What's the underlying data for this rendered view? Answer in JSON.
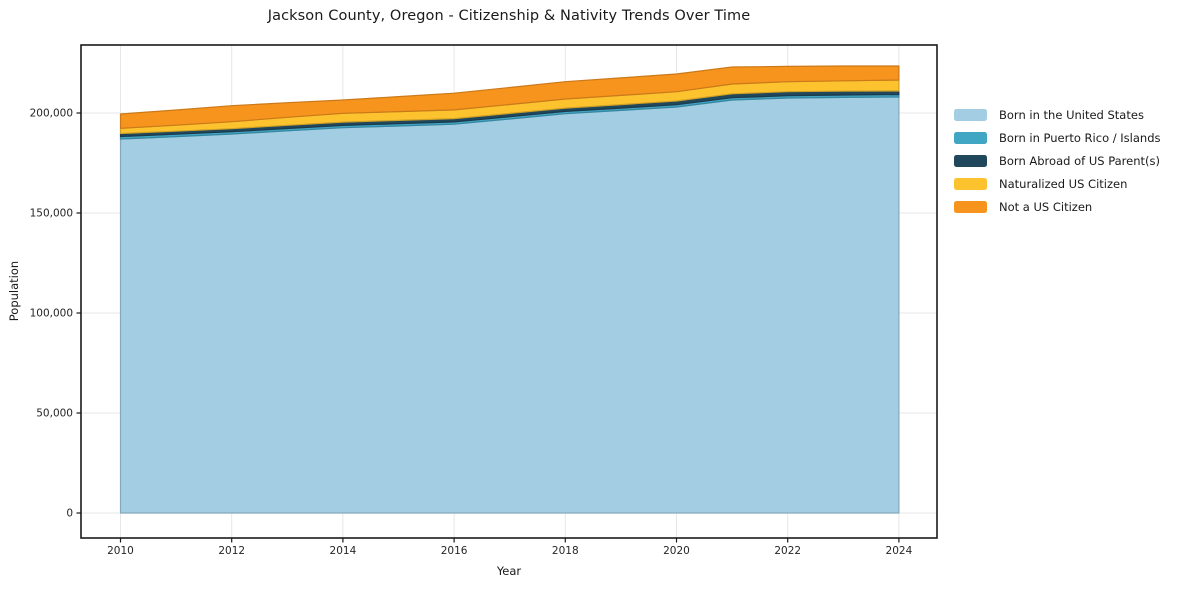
{
  "chart_data": {
    "type": "area",
    "stacked": true,
    "title": "Jackson County, Oregon - Citizenship & Nativity Trends Over Time",
    "xlabel": "Year",
    "ylabel": "Population",
    "x": [
      2010,
      2011,
      2012,
      2013,
      2014,
      2015,
      2016,
      2017,
      2018,
      2019,
      2020,
      2021,
      2022,
      2023,
      2024
    ],
    "x_ticks": [
      {
        "value": 2010,
        "label": "2010"
      },
      {
        "value": 2012,
        "label": "2012"
      },
      {
        "value": 2014,
        "label": "2014"
      },
      {
        "value": 2016,
        "label": "2016"
      },
      {
        "value": 2018,
        "label": "2018"
      },
      {
        "value": 2020,
        "label": "2020"
      },
      {
        "value": 2022,
        "label": "2022"
      },
      {
        "value": 2024,
        "label": "2024"
      }
    ],
    "y_ticks": [
      {
        "value": 0,
        "label": "0"
      },
      {
        "value": 50000,
        "label": "50,000"
      },
      {
        "value": 100000,
        "label": "100,000"
      },
      {
        "value": 150000,
        "label": "150,000"
      },
      {
        "value": 200000,
        "label": "200,000"
      }
    ],
    "xlim": [
      2009.3,
      2024.7
    ],
    "ylim": [
      -12500,
      234000
    ],
    "grid": true,
    "legend_position": "right",
    "series": [
      {
        "name": "Born in the United States",
        "color": "#a2cde3",
        "values": [
          187000,
          188200,
          189500,
          191100,
          192650,
          193500,
          194400,
          197000,
          199650,
          201300,
          203000,
          206500,
          207500,
          207800,
          208000
        ]
      },
      {
        "name": "Born in Puerto Rico / Islands",
        "color": "#41a5c4",
        "values": [
          1250,
          1200,
          1150,
          1150,
          1150,
          1150,
          1150,
          1150,
          1150,
          1150,
          1150,
          1150,
          1150,
          1200,
          1250
        ]
      },
      {
        "name": "Born Abroad of US Parent(s)",
        "color": "#21475c",
        "values": [
          1500,
          1500,
          1500,
          1600,
          1650,
          1650,
          1650,
          1650,
          1650,
          1750,
          1850,
          1950,
          2000,
          1900,
          1750
        ]
      },
      {
        "name": "Naturalized US Citizen",
        "color": "#fdc32f",
        "values": [
          2600,
          3000,
          3500,
          4000,
          4400,
          4400,
          4350,
          4450,
          4550,
          4600,
          4650,
          4900,
          5000,
          5200,
          5500
        ]
      },
      {
        "name": "Not a US Citizen",
        "color": "#f7941e",
        "values": [
          7150,
          7600,
          8000,
          7300,
          6650,
          7500,
          8350,
          8500,
          8650,
          8750,
          8850,
          8500,
          7650,
          7400,
          7000
        ]
      }
    ],
    "style": {
      "figure_bg": "#ffffff",
      "plot_bg": "#ffffff",
      "grid_color": "#e7e7e7",
      "spine_color": "#1a1a1a",
      "tick_text_color": "#262626"
    }
  }
}
